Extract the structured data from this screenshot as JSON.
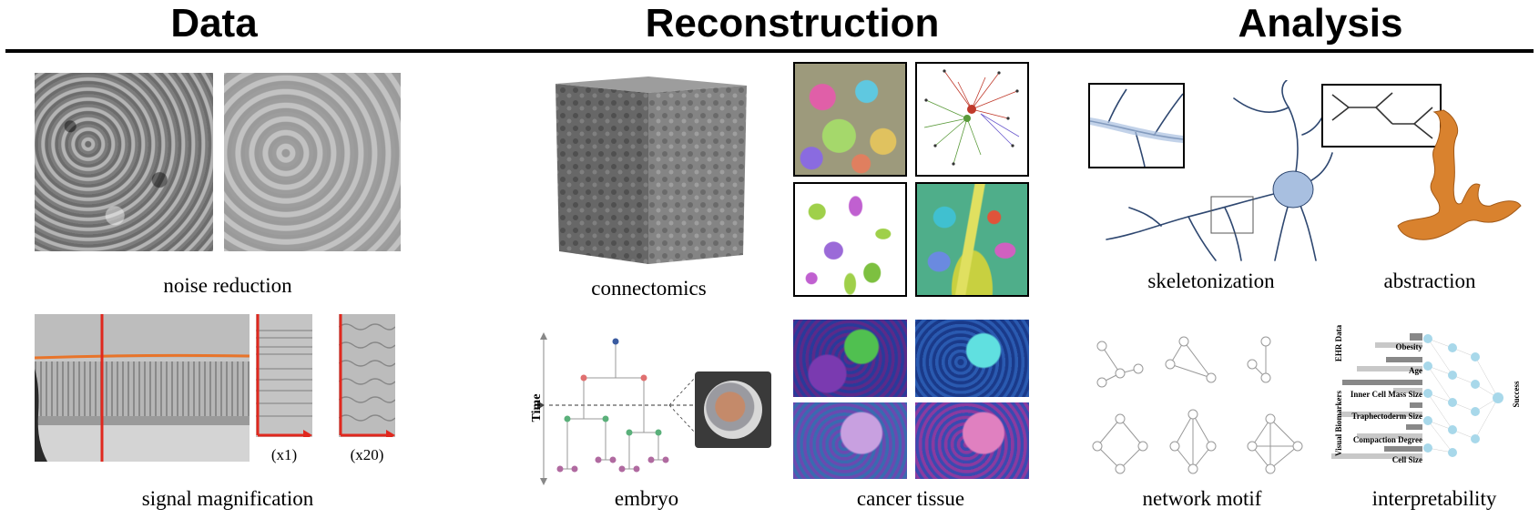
{
  "headings": {
    "data": "Data",
    "reconstruction": "Reconstruction",
    "analysis": "Analysis"
  },
  "captions": {
    "noise_reduction": "noise reduction",
    "signal_magnification": "signal magnification",
    "connectomics": "connectomics",
    "embryo": "embryo",
    "cancer_tissue": "cancer tissue",
    "skeletonization": "skeletonization",
    "abstraction": "abstraction",
    "network_motif": "network motif",
    "interpretability": "interpretability"
  },
  "magnification": {
    "x1": "(x1)",
    "x20": "(x20)"
  },
  "embryo": {
    "axis_label": "Time"
  },
  "interpretability": {
    "group_ehr": "EHR Data",
    "group_visual": "Visual Biomarkers",
    "features": [
      "Obesity",
      "Age",
      "Inner Cell Mass Size",
      "Traphectoderm Size",
      "Compaction Degree",
      "Cell Size"
    ],
    "output": "Success"
  },
  "colors": {
    "accent_red": "#e0281e",
    "overlay_orange": "#e8742a",
    "neuron_blue": "#2e4770",
    "dendrite_orange": "#d9822e",
    "node_blue": "#a8d8ea"
  }
}
